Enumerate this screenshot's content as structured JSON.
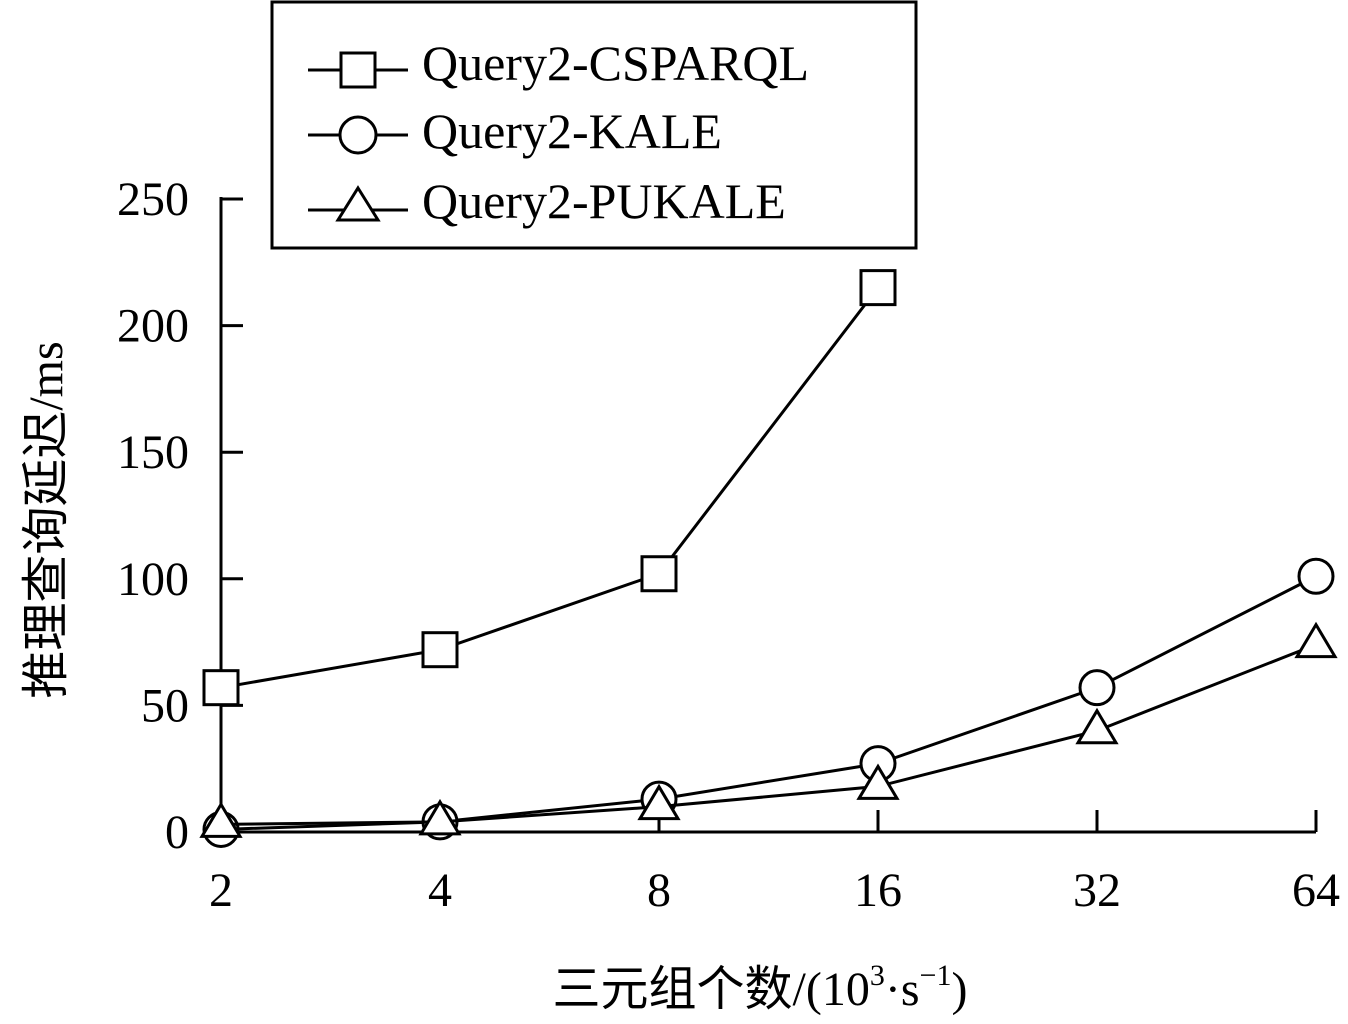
{
  "chart_data": {
    "type": "line",
    "title": "",
    "categories": [
      "2",
      "4",
      "8",
      "16",
      "32",
      "64"
    ],
    "xlabel": "三元组个数/(10",
    "xlabel_sup1": "3",
    "xlabel_mid": "·s",
    "xlabel_sup2": "−1",
    "xlabel_end": ")",
    "ylabel": "推理查询延迟/ms",
    "ylim": [
      0,
      250
    ],
    "yticks": [
      0,
      50,
      100,
      150,
      200,
      250
    ],
    "grid": false,
    "legend_position": "top-center",
    "series": [
      {
        "name": "Query2-CSPARQL",
        "marker": "square",
        "values": [
          57,
          72,
          102,
          215,
          null,
          null
        ]
      },
      {
        "name": "Query2-KALE",
        "marker": "circle",
        "values": [
          1,
          4,
          13,
          27,
          57,
          101
        ]
      },
      {
        "name": "Query2-PUKALE",
        "marker": "triangle",
        "values": [
          3,
          4,
          10,
          18,
          40,
          74
        ]
      }
    ]
  }
}
